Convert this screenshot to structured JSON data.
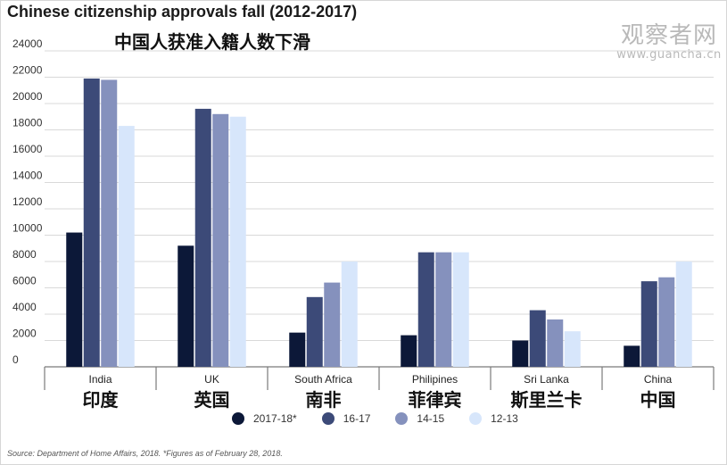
{
  "title": "Chinese citizenship approvals fall (2012-2017)",
  "subtitle": "中国人获准入籍人数下滑",
  "watermark": {
    "text": "观察者网",
    "url": "www.guancha.cn"
  },
  "source": "Source: Department of Home Affairs, 2018. *Figures as of February 28, 2018.",
  "chart_data": {
    "type": "bar",
    "categories": [
      "India",
      "UK",
      "South Africa",
      "Philipines",
      "Sri Lanka",
      "China"
    ],
    "categories_cn": [
      "印度",
      "英国",
      "南非",
      "菲律宾",
      "斯里兰卡",
      "中国"
    ],
    "series": [
      {
        "name": "2017-18*",
        "color": "#0c1838",
        "values": [
          10200,
          9200,
          2600,
          2400,
          2000,
          1600
        ]
      },
      {
        "name": "16-17",
        "color": "#3c4a78",
        "values": [
          21900,
          19600,
          5300,
          8700,
          4300,
          6500
        ]
      },
      {
        "name": "14-15",
        "color": "#8591bd",
        "values": [
          21800,
          19200,
          6400,
          8700,
          3600,
          6800
        ]
      },
      {
        "name": "12-13",
        "color": "#d7e6fb",
        "values": [
          18300,
          19000,
          8000,
          8700,
          2700,
          8000
        ]
      }
    ],
    "y_ticks": [
      0,
      2000,
      4000,
      6000,
      8000,
      10000,
      12000,
      14000,
      16000,
      18000,
      20000,
      22000,
      24000
    ],
    "ylim": [
      0,
      24000
    ],
    "grid": true,
    "legend_position": "bottom"
  }
}
